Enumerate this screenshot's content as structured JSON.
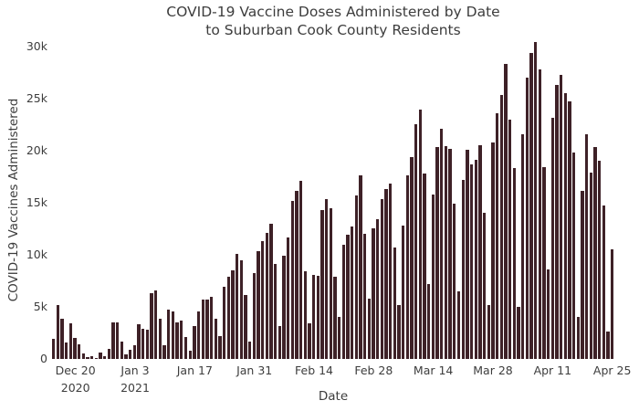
{
  "figure": {
    "title_line1": "COVID-19 Vaccine Doses Administered by Date",
    "title_line2": "to Suburban Cook County Residents"
  },
  "chart_data": {
    "type": "bar",
    "title": "COVID-19 Vaccine Doses Administered by Date to Suburban Cook County Residents",
    "xlabel": "Date",
    "ylabel": "COVID-19 Vaccines Administered",
    "bar_color": "#3e2127",
    "text_color": "#3d3d3d",
    "background_color": "#ffffff",
    "grid": false,
    "legend": "none",
    "ylim": [
      0,
      30500
    ],
    "x_range": [
      "2020-12-15",
      "2021-04-25"
    ],
    "dates": [
      "2020-12-15",
      "2020-12-16",
      "2020-12-17",
      "2020-12-18",
      "2020-12-19",
      "2020-12-20",
      "2020-12-21",
      "2020-12-22",
      "2020-12-23",
      "2020-12-24",
      "2020-12-25",
      "2020-12-26",
      "2020-12-27",
      "2020-12-28",
      "2020-12-29",
      "2020-12-30",
      "2020-12-31",
      "2021-01-01",
      "2021-01-02",
      "2021-01-03",
      "2021-01-04",
      "2021-01-05",
      "2021-01-06",
      "2021-01-07",
      "2021-01-08",
      "2021-01-09",
      "2021-01-10",
      "2021-01-11",
      "2021-01-12",
      "2021-01-13",
      "2021-01-14",
      "2021-01-15",
      "2021-01-16",
      "2021-01-17",
      "2021-01-18",
      "2021-01-19",
      "2021-01-20",
      "2021-01-21",
      "2021-01-22",
      "2021-01-23",
      "2021-01-24",
      "2021-01-25",
      "2021-01-26",
      "2021-01-27",
      "2021-01-28",
      "2021-01-29",
      "2021-01-30",
      "2021-01-31",
      "2021-02-01",
      "2021-02-02",
      "2021-02-03",
      "2021-02-04",
      "2021-02-05",
      "2021-02-06",
      "2021-02-07",
      "2021-02-08",
      "2021-02-09",
      "2021-02-10",
      "2021-02-11",
      "2021-02-12",
      "2021-02-13",
      "2021-02-14",
      "2021-02-15",
      "2021-02-16",
      "2021-02-17",
      "2021-02-18",
      "2021-02-19",
      "2021-02-20",
      "2021-02-21",
      "2021-02-22",
      "2021-02-23",
      "2021-02-24",
      "2021-02-25",
      "2021-02-26",
      "2021-02-27",
      "2021-02-28",
      "2021-03-01",
      "2021-03-02",
      "2021-03-03",
      "2021-03-04",
      "2021-03-05",
      "2021-03-06",
      "2021-03-07",
      "2021-03-08",
      "2021-03-09",
      "2021-03-10",
      "2021-03-11",
      "2021-03-12",
      "2021-03-13",
      "2021-03-14",
      "2021-03-15",
      "2021-03-16",
      "2021-03-17",
      "2021-03-18",
      "2021-03-19",
      "2021-03-20",
      "2021-03-21",
      "2021-03-22",
      "2021-03-23",
      "2021-03-24",
      "2021-03-25",
      "2021-03-26",
      "2021-03-27",
      "2021-03-28",
      "2021-03-29",
      "2021-03-30",
      "2021-03-31",
      "2021-04-01",
      "2021-04-02",
      "2021-04-03",
      "2021-04-04",
      "2021-04-05",
      "2021-04-06",
      "2021-04-07",
      "2021-04-08",
      "2021-04-09",
      "2021-04-10",
      "2021-04-11",
      "2021-04-12",
      "2021-04-13",
      "2021-04-14",
      "2021-04-15",
      "2021-04-16",
      "2021-04-17",
      "2021-04-18",
      "2021-04-19",
      "2021-04-20",
      "2021-04-21",
      "2021-04-22",
      "2021-04-23",
      "2021-04-24",
      "2021-04-25"
    ],
    "values": [
      1900,
      5200,
      3900,
      1600,
      3400,
      2000,
      1400,
      500,
      150,
      300,
      100,
      600,
      250,
      1000,
      3500,
      3500,
      1650,
      400,
      900,
      1300,
      3300,
      2900,
      2800,
      6300,
      6600,
      3900,
      1300,
      4700,
      4600,
      3500,
      3700,
      2100,
      800,
      3200,
      4600,
      5700,
      5700,
      6000,
      3900,
      2200,
      6900,
      7900,
      8500,
      10100,
      9500,
      6100,
      1650,
      8200,
      10300,
      11300,
      12100,
      13000,
      9100,
      3200,
      9900,
      11700,
      15200,
      16100,
      17100,
      8400,
      3450,
      8100,
      8000,
      14300,
      15300,
      14500,
      7900,
      4000,
      11000,
      11900,
      12700,
      15700,
      17600,
      12000,
      5800,
      12500,
      13400,
      15300,
      16300,
      16800,
      10700,
      5200,
      12800,
      17600,
      19400,
      22500,
      23900,
      17800,
      7200,
      15800,
      20300,
      22100,
      20400,
      20200,
      14900,
      6500,
      17200,
      20100,
      18700,
      19100,
      20500,
      14000,
      5200,
      20800,
      23600,
      25300,
      28300,
      23000,
      18300,
      5000,
      21600,
      27000,
      29400,
      30400,
      27800,
      18400,
      8600,
      23100,
      26300,
      27300,
      25500,
      24700,
      19800,
      4000,
      16100,
      21600,
      17900,
      20300,
      19000,
      14700,
      2600,
      10500
    ],
    "y_ticks": [
      {
        "value": 0,
        "label": "0"
      },
      {
        "value": 5000,
        "label": "5k"
      },
      {
        "value": 10000,
        "label": "10k"
      },
      {
        "value": 15000,
        "label": "15k"
      },
      {
        "value": 20000,
        "label": "20k"
      },
      {
        "value": 25000,
        "label": "25k"
      },
      {
        "value": 30000,
        "label": "30k"
      }
    ],
    "x_ticks": [
      {
        "index": 5,
        "label": "Dec 20",
        "sub": "2020"
      },
      {
        "index": 19,
        "label": "Jan 3",
        "sub": "2021"
      },
      {
        "index": 33,
        "label": "Jan 17"
      },
      {
        "index": 47,
        "label": "Jan 31"
      },
      {
        "index": 61,
        "label": "Feb 14"
      },
      {
        "index": 75,
        "label": "Feb 28"
      },
      {
        "index": 89,
        "label": "Mar 14"
      },
      {
        "index": 103,
        "label": "Mar 28"
      },
      {
        "index": 117,
        "label": "Apr 11"
      },
      {
        "index": 131,
        "label": "Apr 25"
      }
    ]
  }
}
